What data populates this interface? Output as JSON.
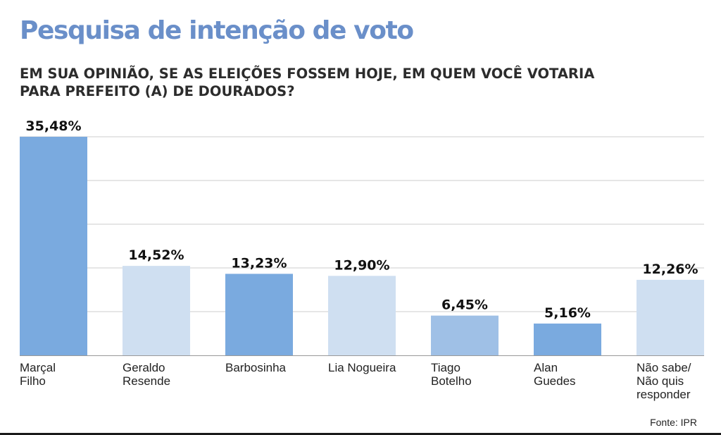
{
  "header": {
    "title": "Pesquisa de intenção de voto",
    "question_line1": "EM SUA OPINIÃO, SE AS ELEIÇÕES FOSSEM HOJE, EM QUEM VOCÊ VOTARIA",
    "question_line2": "PARA PREFEITO (A) DE DOURADOS?"
  },
  "footer": {
    "source": "Fonte: IPR"
  },
  "colors": {
    "title": "#6a8fc9",
    "bar_dark": "#7aaadf",
    "bar_mid": "#9fc0e6",
    "bar_light": "#cfdff1",
    "grid": "#cccccc"
  },
  "chart_data": {
    "type": "bar",
    "title": "Pesquisa de intenção de voto",
    "xlabel": "",
    "ylabel": "",
    "ylim": [
      0,
      35.48
    ],
    "grid": true,
    "categories": [
      [
        "Marçal",
        "Filho"
      ],
      [
        "Geraldo",
        "Resende"
      ],
      [
        "Barbosinha"
      ],
      [
        "Lia Nogueira"
      ],
      [
        "Tiago",
        "Botelho"
      ],
      [
        "Alan",
        "Guedes"
      ],
      [
        "Não sabe/",
        "Não quis",
        "responder"
      ]
    ],
    "values": [
      35.48,
      14.52,
      13.23,
      12.9,
      6.45,
      5.16,
      12.26
    ],
    "value_labels": [
      "35,48%",
      "14,52%",
      "13,23%",
      "12,90%",
      "6,45%",
      "5,16%",
      "12,26%"
    ],
    "bar_shades": [
      "dark",
      "light",
      "dark",
      "light",
      "mid",
      "dark",
      "light"
    ]
  }
}
